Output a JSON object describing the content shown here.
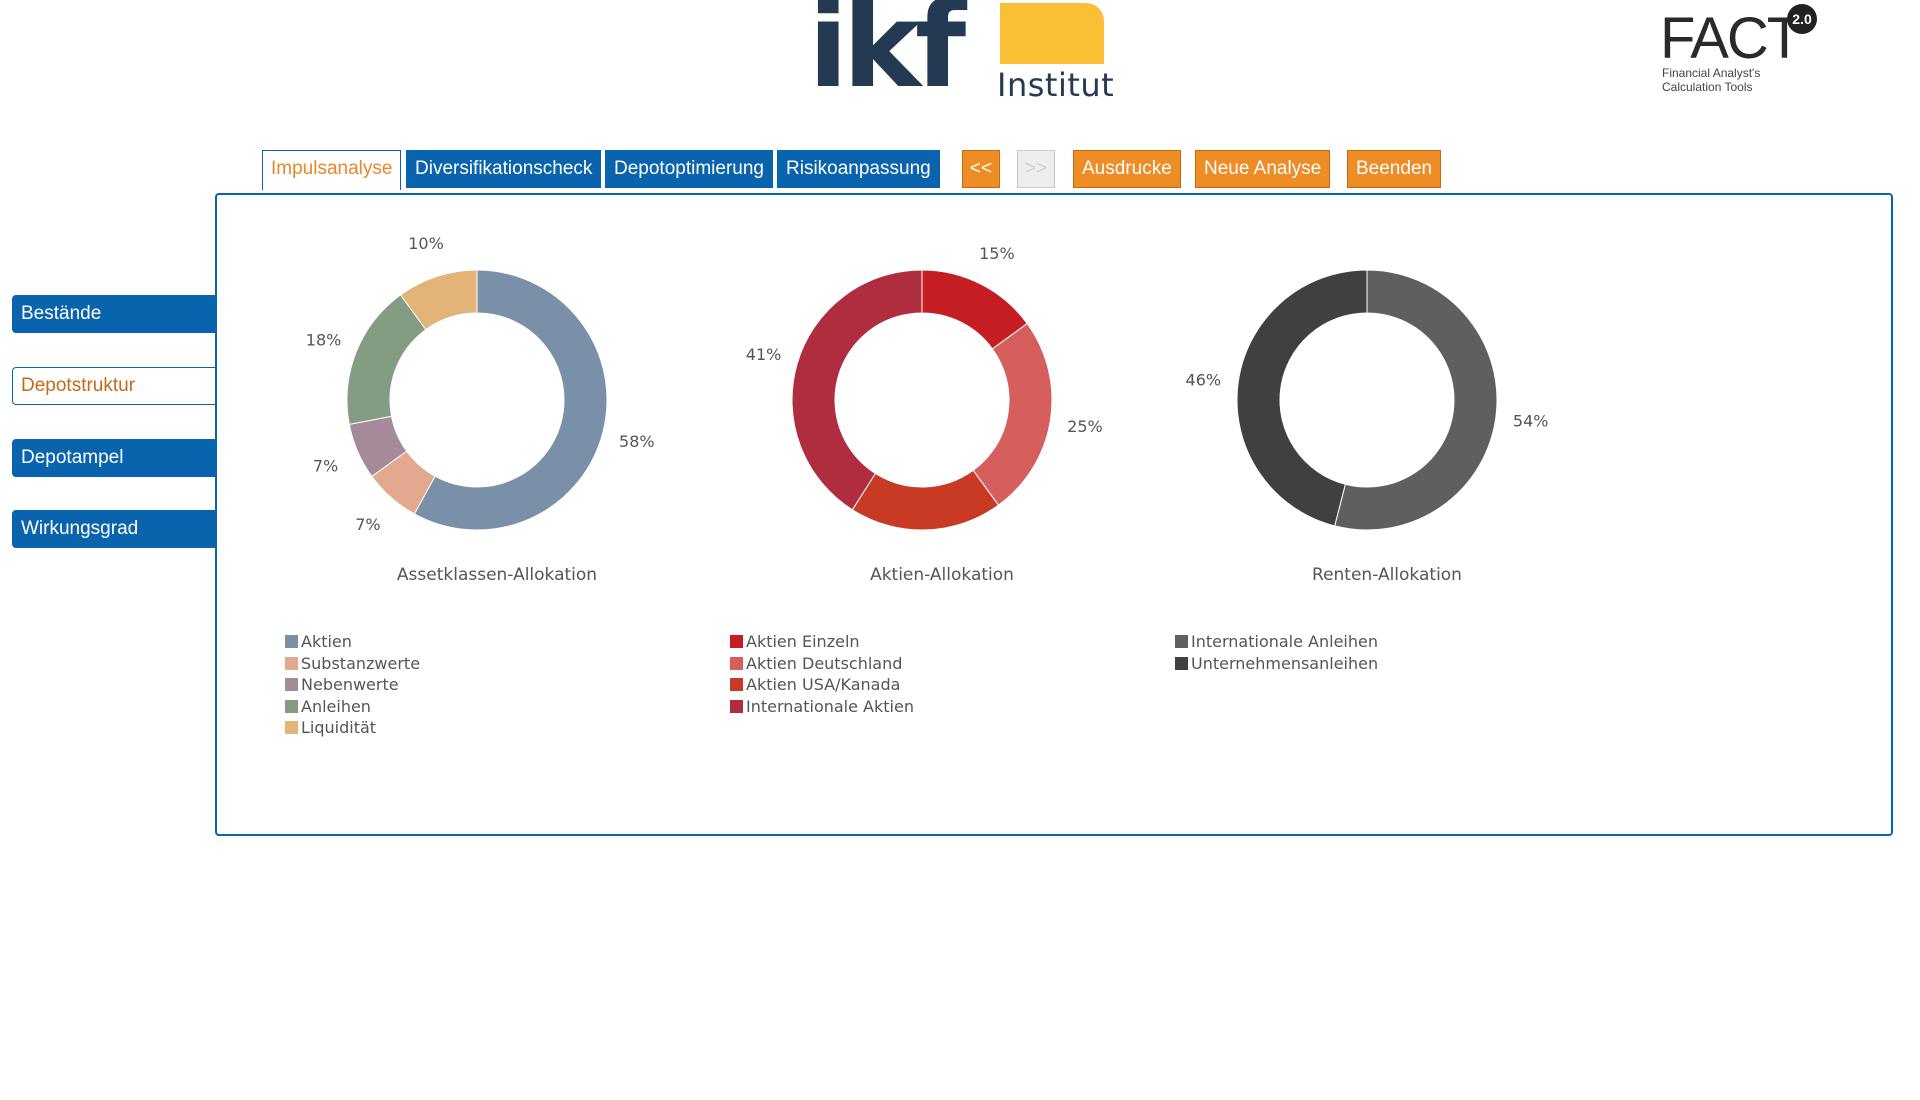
{
  "logos": {
    "ikf_letters": "ikf",
    "ikf_sub": "Institut",
    "fact_name": "FACT",
    "fact_version": "2.0",
    "fact_sub_line1": "Financial Analyst's",
    "fact_sub_line2": "Calculation Tools"
  },
  "tabs": [
    {
      "label": "Impulsanalyse",
      "active": true
    },
    {
      "label": "Diversifikationscheck",
      "active": false
    },
    {
      "label": "Depotoptimierung",
      "active": false
    },
    {
      "label": "Risikoanpassung",
      "active": false
    }
  ],
  "nav_buttons": {
    "back": "<<",
    "forward": ">>"
  },
  "actions": {
    "print": "Ausdrucke",
    "new": "Neue Analyse",
    "quit": "Beenden"
  },
  "sidebar": [
    {
      "label": "Bestände",
      "active": false
    },
    {
      "label": "Depotstruktur",
      "active": true
    },
    {
      "label": "Depotampel",
      "active": false
    },
    {
      "label": "Wirkungsgrad",
      "active": false
    }
  ],
  "colors": {
    "primary": "#0a64ad",
    "accent": "#ee8c25",
    "active_text": "#e8872b"
  },
  "chart_data": [
    {
      "type": "pie",
      "title": "Assetklassen-Allokation",
      "categories": [
        "Aktien",
        "Substanzwerte",
        "Nebenwerte",
        "Anleihen",
        "Liquidität"
      ],
      "values": [
        58,
        7,
        7,
        18,
        10
      ],
      "labels": [
        "58%",
        "7%",
        "7%",
        "18%",
        "10%"
      ],
      "colors": [
        "#7a8fa8",
        "#e3a98f",
        "#a58b99",
        "#849d82",
        "#e3b478"
      ]
    },
    {
      "type": "pie",
      "title": "Aktien-Allokation",
      "categories": [
        "Aktien Einzeln",
        "Aktien Deutschland",
        "Aktien USA/Kanada",
        "Internationale Aktien"
      ],
      "values": [
        15,
        25,
        19,
        41
      ],
      "labels": [
        "15%",
        "25%",
        "19%",
        "41%"
      ],
      "colors": [
        "#c41e22",
        "#d55f5d",
        "#c83a24",
        "#b02d40"
      ]
    },
    {
      "type": "pie",
      "title": "Renten-Allokation",
      "categories": [
        "Internationale Anleihen",
        "Unternehmensanleihen"
      ],
      "values": [
        54,
        46
      ],
      "labels": [
        "54%",
        "46%"
      ],
      "colors": [
        "#5f5f5f",
        "#404040"
      ]
    }
  ]
}
